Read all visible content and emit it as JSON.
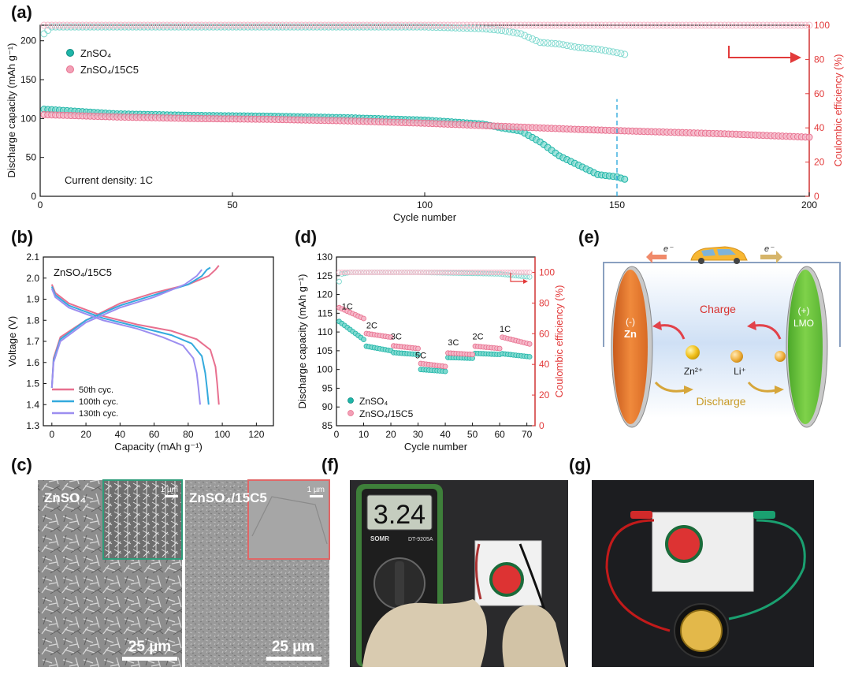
{
  "panels": {
    "a": {
      "label": "(a)"
    },
    "b": {
      "label": "(b)"
    },
    "c": {
      "label": "(c)"
    },
    "d": {
      "label": "(d)"
    },
    "e": {
      "label": "(e)"
    },
    "f": {
      "label": "(f)"
    },
    "g": {
      "label": "(g)"
    }
  },
  "colors": {
    "teal": "#1fb5a8",
    "pink": "#e8708f",
    "red_axis": "#e23a3a",
    "blue_line": "#33aadd",
    "violet_line": "#9c8ef0",
    "lilac": "#b7a6ee",
    "orange_cap": "#e07a2e",
    "green_cap": "#6cc23a"
  },
  "chart_data": [
    {
      "id": "a",
      "type": "scatter",
      "xlabel": "Cycle number",
      "ylabel": "Discharge capacity (mAh g⁻¹)",
      "y2label": "Coulombic efficiency (%)",
      "xlim": [
        0,
        200
      ],
      "ylim": [
        0,
        220
      ],
      "y2lim": [
        0,
        100
      ],
      "xticks": [
        0,
        50,
        100,
        150,
        200
      ],
      "yticks": [
        0,
        50,
        100,
        150,
        200
      ],
      "y2ticks": [
        0,
        20,
        40,
        60,
        80,
        100
      ],
      "annotation": "Current density: 1C",
      "marker_line_x": 150,
      "legend": [
        "ZnSO₄",
        "ZnSO₄/15C5"
      ],
      "series": [
        {
          "name": "ZnSO₄",
          "kind": "capacity",
          "x": [
            1,
            20,
            40,
            60,
            80,
            100,
            115,
            120,
            125,
            130,
            135,
            140,
            145,
            150,
            152
          ],
          "y": [
            112,
            106,
            104,
            103,
            101,
            98,
            93,
            88,
            84,
            70,
            52,
            40,
            28,
            25,
            22
          ]
        },
        {
          "name": "ZnSO₄/15C5",
          "kind": "capacity",
          "x": [
            1,
            20,
            40,
            60,
            80,
            100,
            120,
            140,
            160,
            180,
            200
          ],
          "y": [
            105,
            102,
            100,
            99,
            97,
            94,
            90,
            86,
            83,
            80,
            76
          ]
        },
        {
          "name": "ZnSO₄",
          "kind": "efficiency",
          "x": [
            1,
            3,
            20,
            50,
            80,
            100,
            115,
            120,
            125,
            130,
            135,
            140,
            145,
            150,
            152
          ],
          "y": [
            95,
            99,
            99,
            99,
            99,
            99,
            98,
            97,
            95,
            90,
            89,
            87,
            86,
            84,
            83
          ]
        },
        {
          "name": "ZnSO₄/15C5",
          "kind": "efficiency",
          "x": [
            1,
            50,
            100,
            150,
            200
          ],
          "y": [
            100,
            100,
            100,
            100,
            100
          ]
        }
      ]
    },
    {
      "id": "b",
      "type": "line",
      "xlabel": "Capacity (mAh g⁻¹)",
      "ylabel": "Voltage (V)",
      "title": "ZnSO₄/15C5",
      "xlim": [
        -5,
        130
      ],
      "ylim": [
        1.3,
        2.1
      ],
      "xticks": [
        0,
        20,
        40,
        60,
        80,
        100,
        120
      ],
      "yticks": [
        1.3,
        1.4,
        1.5,
        1.6,
        1.7,
        1.8,
        1.9,
        2.0,
        2.1
      ],
      "series": [
        {
          "name": "50th  cyc.",
          "color": "#e8708f",
          "discharge": {
            "x": [
              0,
              2,
              10,
              30,
              50,
              70,
              85,
              93,
              96,
              97,
              98
            ],
            "y": [
              1.97,
              1.93,
              1.88,
              1.82,
              1.78,
              1.75,
              1.71,
              1.66,
              1.58,
              1.5,
              1.4
            ]
          },
          "charge": {
            "x": [
              0,
              1,
              5,
              20,
              40,
              60,
              80,
              92,
              96,
              98
            ],
            "y": [
              1.48,
              1.62,
              1.72,
              1.8,
              1.88,
              1.93,
              1.97,
              2.01,
              2.04,
              2.06
            ]
          }
        },
        {
          "name": "100th cyc.",
          "color": "#33aadd",
          "discharge": {
            "x": [
              0,
              2,
              10,
              30,
              50,
              70,
              82,
              88,
              90,
              91,
              92
            ],
            "y": [
              1.96,
              1.92,
              1.87,
              1.81,
              1.77,
              1.73,
              1.69,
              1.63,
              1.55,
              1.48,
              1.4
            ]
          },
          "charge": {
            "x": [
              0,
              1,
              5,
              20,
              40,
              60,
              80,
              88,
              91,
              93
            ],
            "y": [
              1.48,
              1.61,
              1.71,
              1.8,
              1.87,
              1.92,
              1.97,
              2.01,
              2.04,
              2.05
            ]
          }
        },
        {
          "name": "130th cyc.",
          "color": "#9c8ef0",
          "discharge": {
            "x": [
              0,
              2,
              10,
              30,
              50,
              65,
              77,
              83,
              85,
              86,
              87
            ],
            "y": [
              1.95,
              1.91,
              1.86,
              1.8,
              1.76,
              1.72,
              1.68,
              1.62,
              1.55,
              1.48,
              1.4
            ]
          },
          "charge": {
            "x": [
              0,
              1,
              5,
              20,
              40,
              60,
              78,
              85,
              88
            ],
            "y": [
              1.48,
              1.6,
              1.7,
              1.79,
              1.86,
              1.91,
              1.97,
              2.01,
              2.04
            ]
          }
        }
      ]
    },
    {
      "id": "d",
      "type": "scatter",
      "xlabel": "Cycle number",
      "ylabel": "Discharge capacity (mAh g⁻¹)",
      "y2label": "Coulombic efficiency (%)",
      "xlim": [
        0,
        73
      ],
      "ylim": [
        85,
        130
      ],
      "y2lim": [
        0,
        110
      ],
      "xticks": [
        0,
        10,
        20,
        30,
        40,
        50,
        60,
        70
      ],
      "yticks": [
        85,
        90,
        95,
        100,
        105,
        110,
        115,
        120,
        125,
        130
      ],
      "y2ticks": [
        0,
        20,
        40,
        60,
        80,
        100
      ],
      "rate_labels": [
        {
          "text": "1C",
          "x": 4,
          "y": 116
        },
        {
          "text": "2C",
          "x": 13,
          "y": 111
        },
        {
          "text": "3C",
          "x": 22,
          "y": 108
        },
        {
          "text": "5C",
          "x": 31,
          "y": 103
        },
        {
          "text": "3C",
          "x": 43,
          "y": 106.5
        },
        {
          "text": "2C",
          "x": 52,
          "y": 108
        },
        {
          "text": "1C",
          "x": 62,
          "y": 110
        }
      ],
      "legend": [
        "ZnSO₄",
        "ZnSO₄/15C5"
      ],
      "series": [
        {
          "name": "ZnSO₄",
          "kind": "capacity",
          "segments": [
            {
              "x0": 1,
              "x1": 10,
              "y0": 112.8,
              "y1": 108
            },
            {
              "x0": 11,
              "x1": 20,
              "y0": 106.2,
              "y1": 105
            },
            {
              "x0": 21,
              "x1": 30,
              "y0": 104.5,
              "y1": 104
            },
            {
              "x0": 31,
              "x1": 40,
              "y0": 100,
              "y1": 99.5
            },
            {
              "x0": 41,
              "x1": 50,
              "y0": 103.2,
              "y1": 103
            },
            {
              "x0": 51,
              "x1": 60,
              "y0": 104.3,
              "y1": 104
            },
            {
              "x0": 61,
              "x1": 71,
              "y0": 104.2,
              "y1": 103.4
            }
          ]
        },
        {
          "name": "ZnSO₄/15C5",
          "kind": "capacity",
          "segments": [
            {
              "x0": 1,
              "x1": 10,
              "y0": 116.5,
              "y1": 113.6
            },
            {
              "x0": 11,
              "x1": 20,
              "y0": 109.6,
              "y1": 108.6
            },
            {
              "x0": 21,
              "x1": 30,
              "y0": 106.3,
              "y1": 105.6
            },
            {
              "x0": 31,
              "x1": 40,
              "y0": 101.6,
              "y1": 100.8
            },
            {
              "x0": 41,
              "x1": 50,
              "y0": 104.4,
              "y1": 104
            },
            {
              "x0": 51,
              "x1": 60,
              "y0": 106.2,
              "y1": 105.6
            },
            {
              "x0": 61,
              "x1": 71,
              "y0": 108.6,
              "y1": 106.8
            }
          ]
        },
        {
          "name": "ZnSO₄",
          "kind": "efficiency",
          "x": [
            1,
            2,
            5,
            30,
            60,
            65,
            71
          ],
          "y": [
            94,
            99,
            100,
            100,
            99,
            98,
            97
          ]
        },
        {
          "name": "ZnSO₄/15C5",
          "kind": "efficiency",
          "x": [
            1,
            35,
            71
          ],
          "y": [
            100,
            100,
            100
          ]
        }
      ]
    }
  ],
  "panel_c": {
    "left_title": "ZnSO₄",
    "right_title": "ZnSO₄/15C5",
    "inset_scale": "1 µm",
    "scale_bar": "25 µm"
  },
  "panel_e": {
    "electron_left": "e⁻",
    "electron_right": "e⁻",
    "anode_sign": "(-)",
    "anode_label": "Zn",
    "cathode_sign": "(+)",
    "cathode_label": "LMO",
    "charge_label": "Charge",
    "discharge_label": "Discharge",
    "ion_zn": "Zn²⁺",
    "ion_li": "Li⁺"
  },
  "panel_f": {
    "display_value": "3.24",
    "brand": "SOMR",
    "model": "DT-9205A"
  }
}
